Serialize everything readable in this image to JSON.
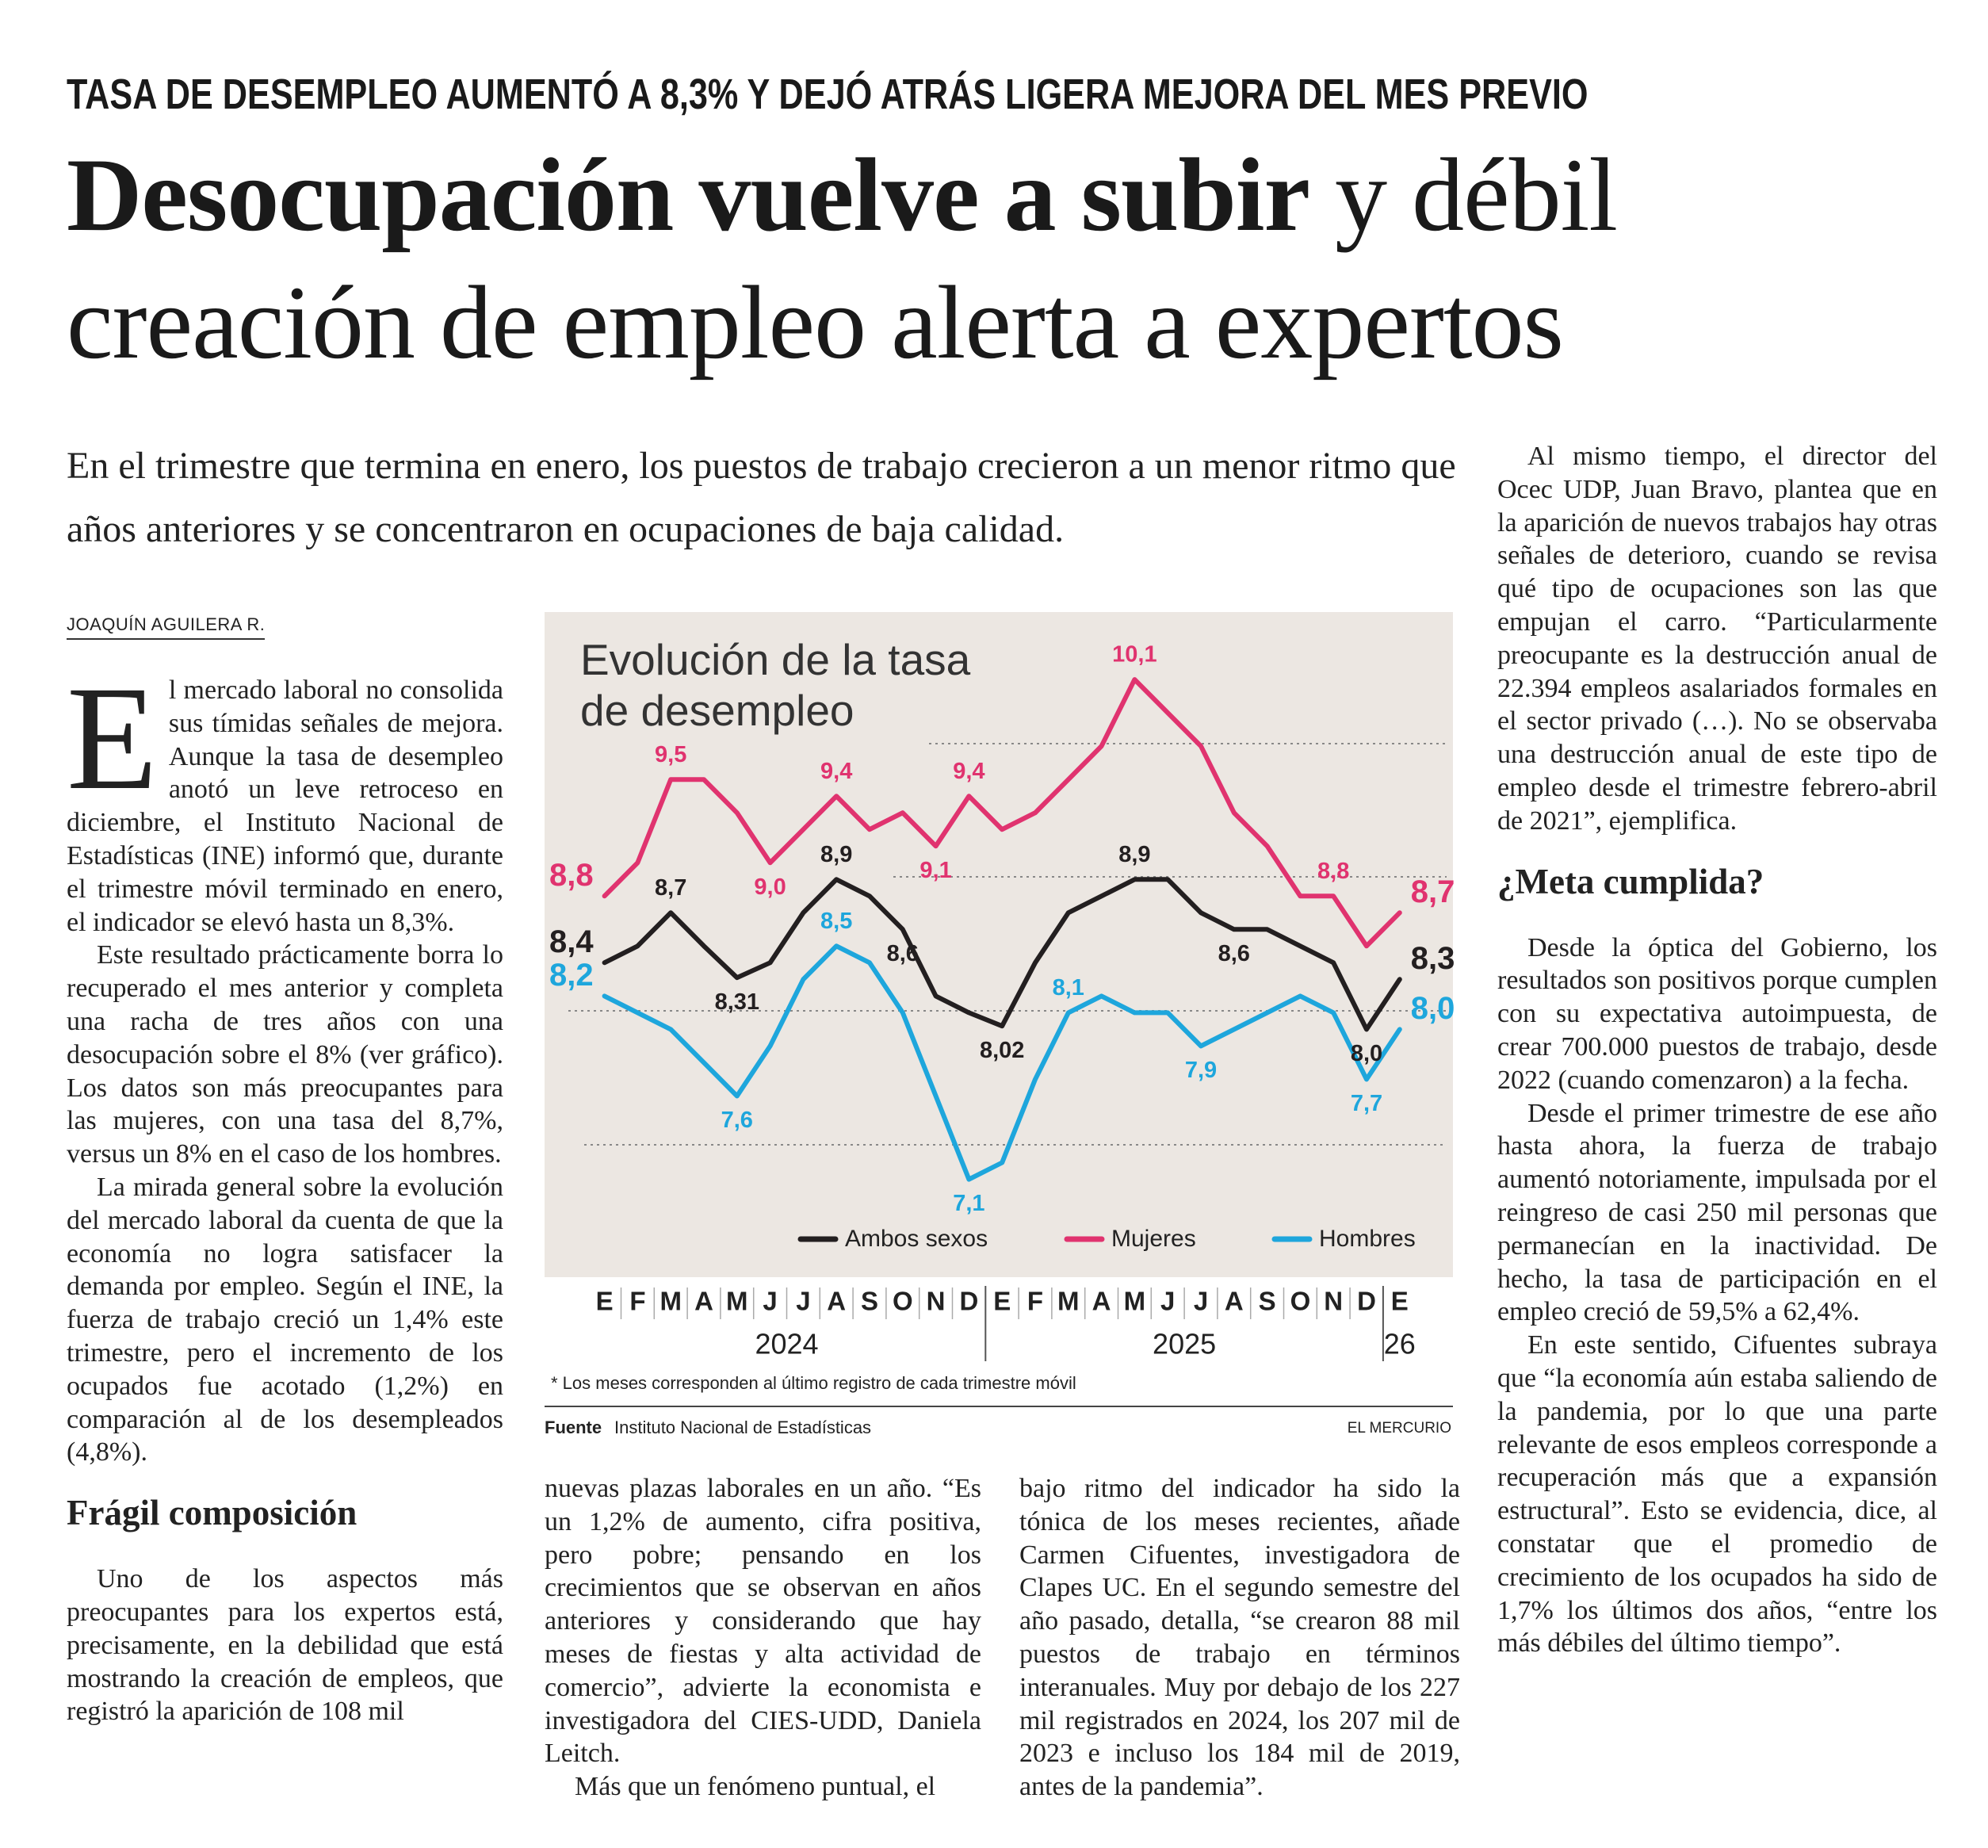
{
  "header": {
    "kicker": "TASA DE DESEMPLEO AUMENTÓ A 8,3% Y DEJÓ ATRÁS LIGERA MEJORA DEL MES PREVIO",
    "title_bold": "Desocupación vuelve a subir",
    "title_rest": "y débil creación de empleo alerta a expertos",
    "lead": "En el trimestre que termina en enero, los puestos de trabajo crecieron a un menor ritmo que años anteriores y se concentraron en ocupaciones de baja calidad."
  },
  "byline": "JOAQUÍN AGUILERA R.",
  "columns": [
    [
      {
        "paragraph": "El mercado laboral no consolida sus tímidas señales de mejora. Aunque la tasa de desempleo anotó un leve retroceso en diciembre, el Instituto Nacional de Estadísticas (INE) informó que, durante el trimestre móvil terminado en enero, el indicador se elevó hasta un 8,3%."
      },
      {
        "paragraph": "Este resultado prácticamente borra lo recuperado el mes anterior y completa una racha de tres años con una desocupación sobre el 8% (ver gráfico). Los datos son más preocupantes para las mujeres, con una tasa del 8,7%, versus un 8% en el caso de los hombres."
      },
      {
        "paragraph": "La mirada general sobre la evolución del mercado laboral da cuenta de que la economía no logra satisfacer la demanda por empleo. Según el INE, la fuerza de trabajo creció un 1,4% este trimestre, pero el incremento de los ocupados fue acotado (1,2%) en comparación al de los desempleados (4,8%)."
      },
      {
        "subhead": "Frágil composición"
      },
      {
        "paragraph": "Uno de los aspectos más preocupantes para los expertos está, precisamente, en la debilidad que está mostrando la creación de empleos, que registró la aparición de 108 mil"
      }
    ],
    [
      {
        "paragraph": "nuevas plazas laborales en un año. “Es un 1,2% de aumento, cifra positiva, pero pobre; pensando en los crecimientos que se observan en años anteriores y considerando que hay meses de fiestas y alta actividad de comercio”, advierte la economista e investigadora del CIES-UDD, Daniela Leitch."
      },
      {
        "paragraph": "Más que un fenómeno puntual, el"
      }
    ],
    [
      {
        "paragraph": "bajo ritmo del indicador ha sido la tónica de los meses recientes, añade Carmen Cifuentes, investigadora de Clapes UC. En el segundo semestre del año pasado, detalla, “se crearon 88 mil puestos de trabajo en términos interanuales. Muy por debajo de los 227 mil registrados en 2024, los 207 mil de 2023 e incluso los 184 mil de 2019, antes de la pandemia”."
      }
    ],
    [
      {
        "paragraph": "Al mismo tiempo, el director del Ocec UDP, Juan Bravo, plantea que en la aparición de nuevos trabajos hay otras señales de deterioro, cuando se revisa qué tipo de ocupaciones son las que empujan el carro. “Particularmente preocupante es la destrucción anual de 22.394 empleos asalariados formales en el sector privado (…). No se observaba una destrucción anual de este tipo de empleo desde el trimestre febrero-abril de 2021”, ejemplifica."
      },
      {
        "subhead": "¿Meta cumplida?"
      },
      {
        "paragraph": "Desde la óptica del Gobierno, los resultados son positivos porque cumplen con su expectativa autoimpuesta, de crear 700.000 puestos de trabajo, desde 2022 (cuando comenzaron) a la fecha."
      },
      {
        "paragraph": "Desde el primer trimestre de ese año hasta ahora, la fuerza de trabajo aumentó notoriamente, impulsada por el reingreso de casi 250 mil personas que permanecían en la inactividad. De hecho, la tasa de participación en el empleo creció de 59,5% a 62,4%."
      },
      {
        "paragraph": "En este sentido, Cifuentes subraya que “la economía aún estaba saliendo de la pandemia, por lo que una parte relevante de esos empleos corresponde a recuperación más que a expansión estructural”. Esto se evidencia, dice, al constatar que el promedio de crecimiento de los ocupados ha sido de 1,7% los últimos dos años, “entre los más débiles del último tiempo”."
      }
    ]
  ],
  "chart_data": {
    "type": "line",
    "title": "Evolución de la tasa de desempleo",
    "categories": [
      "E",
      "F",
      "M",
      "A",
      "M",
      "J",
      "J",
      "A",
      "S",
      "O",
      "N",
      "D",
      "E",
      "F",
      "M",
      "A",
      "M",
      "J",
      "J",
      "A",
      "S",
      "O",
      "N",
      "D",
      "E"
    ],
    "years": [
      "2024",
      "2025",
      "26"
    ],
    "ylim": [
      6.8,
      10.4
    ],
    "legend": "bottom",
    "series": [
      {
        "name": "Ambos sexos",
        "color": "#231f20",
        "values": [
          8.4,
          8.5,
          8.7,
          8.5,
          8.31,
          8.4,
          8.7,
          8.9,
          8.8,
          8.6,
          8.2,
          8.1,
          8.02,
          8.4,
          8.7,
          8.8,
          8.9,
          8.9,
          8.7,
          8.6,
          8.6,
          8.5,
          8.4,
          8.0,
          8.3
        ],
        "value_labels": [
          "8,4",
          null,
          "8,7",
          null,
          "8,31",
          null,
          null,
          "8,9",
          null,
          "8,6",
          null,
          null,
          "8,02",
          null,
          null,
          null,
          "8,9",
          null,
          null,
          "8,6",
          null,
          null,
          null,
          "8,0",
          "8,3"
        ]
      },
      {
        "name": "Mujeres",
        "color": "#e0336f",
        "values": [
          8.8,
          9.0,
          9.5,
          9.5,
          9.3,
          9.0,
          9.2,
          9.4,
          9.2,
          9.3,
          9.1,
          9.4,
          9.2,
          9.3,
          9.5,
          9.7,
          10.1,
          9.9,
          9.7,
          9.3,
          9.1,
          8.8,
          8.8,
          8.5,
          8.7
        ],
        "value_labels": [
          "8,8",
          null,
          "9,5",
          null,
          null,
          "9,0",
          null,
          "9,4",
          null,
          null,
          "9,1",
          "9,4",
          null,
          null,
          null,
          null,
          "10,1",
          null,
          null,
          null,
          null,
          null,
          "8,8",
          null,
          "8,7"
        ]
      },
      {
        "name": "Hombres",
        "color": "#1ea6dc",
        "values": [
          8.2,
          8.1,
          8.0,
          7.8,
          7.6,
          7.9,
          8.3,
          8.5,
          8.4,
          8.1,
          7.6,
          7.1,
          7.2,
          7.7,
          8.1,
          8.2,
          8.1,
          8.1,
          7.9,
          8.0,
          8.1,
          8.2,
          8.1,
          7.7,
          8.0
        ],
        "value_labels": [
          "8,2",
          null,
          null,
          null,
          "7,6",
          null,
          null,
          "8,5",
          null,
          null,
          null,
          "7,1",
          null,
          null,
          "8,1",
          null,
          null,
          null,
          "7,9",
          null,
          null,
          null,
          null,
          "7,7",
          "8,0"
        ]
      }
    ],
    "footnote": "* Los meses corresponden al último registro de cada trimestre móvil",
    "source_label": "Fuente",
    "source": "Instituto Nacional de Estadísticas",
    "credit": "EL MERCURIO"
  }
}
